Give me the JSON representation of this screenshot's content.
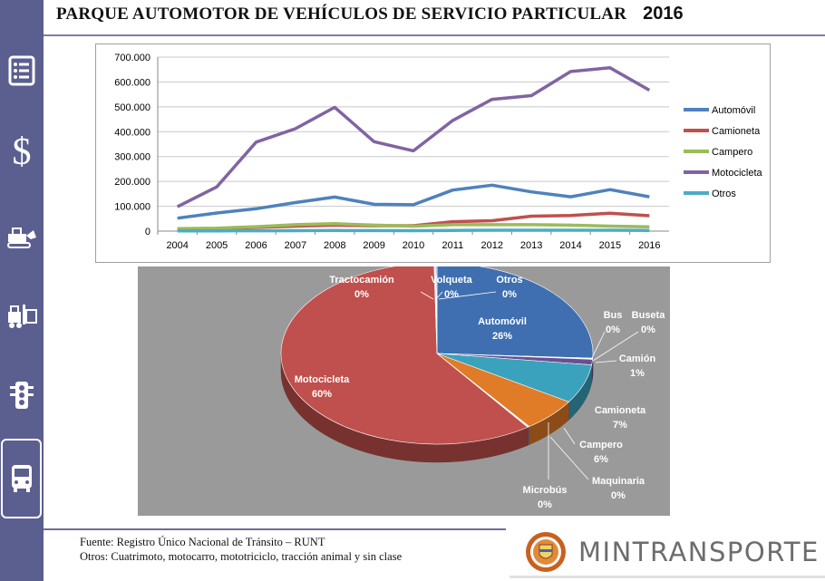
{
  "header": {
    "title": "PARQUE AUTOMOTOR DE VEHÍCULOS DE SERVICIO  PARTICULAR",
    "year": "2016"
  },
  "sidebar": {
    "icons": [
      "list-icon",
      "dollar-icon",
      "truck-icon",
      "forklift-icon",
      "traffic-light-icon",
      "bus-icon"
    ],
    "dollar_glyph": "$"
  },
  "chart_data": [
    {
      "type": "line",
      "x": [
        "2004",
        "2005",
        "2006",
        "2007",
        "2008",
        "2009",
        "2010",
        "2011",
        "2012",
        "2013",
        "2014",
        "2015",
        "2016"
      ],
      "y_ticks": [
        "0",
        "100.000",
        "200.000",
        "300.000",
        "400.000",
        "500.000",
        "600.000",
        "700.000"
      ],
      "ylim": [
        0,
        700000
      ],
      "grid": true,
      "legend_position": "right",
      "series": [
        {
          "name": "Automóvil",
          "color": "#4f81bd",
          "values": [
            52000,
            73000,
            90000,
            115000,
            137000,
            108000,
            106000,
            165000,
            185000,
            158000,
            138000,
            167000,
            138000
          ]
        },
        {
          "name": "Camioneta",
          "color": "#c0504d",
          "values": [
            6000,
            10000,
            15000,
            20000,
            24000,
            22000,
            22000,
            38000,
            42000,
            60000,
            63000,
            72000,
            62000
          ]
        },
        {
          "name": "Campero",
          "color": "#9bbb59",
          "values": [
            10000,
            12000,
            18000,
            26000,
            30000,
            24000,
            20000,
            26000,
            26000,
            26000,
            24000,
            20000,
            17000
          ]
        },
        {
          "name": "Motocicleta",
          "color": "#8064a2",
          "values": [
            98000,
            178000,
            358000,
            412000,
            498000,
            360000,
            323000,
            445000,
            530000,
            545000,
            642000,
            657000,
            567000
          ]
        },
        {
          "name": "Otros",
          "color": "#4bacc6",
          "values": [
            1000,
            1200,
            1500,
            2000,
            2500,
            2200,
            2000,
            3000,
            3500,
            3500,
            3500,
            3500,
            3000
          ]
        }
      ]
    },
    {
      "type": "pie",
      "slices": [
        {
          "label": "Automóvil",
          "value": 26,
          "pct": "26%",
          "color": "#3f6fb0"
        },
        {
          "label": "Bus",
          "value": 0.1,
          "pct": "0%",
          "color": "#7aa0d0"
        },
        {
          "label": "Buseta",
          "value": 0.1,
          "pct": "0%",
          "color": "#8fb04c"
        },
        {
          "label": "Camión",
          "value": 1,
          "pct": "1%",
          "color": "#6a4f90"
        },
        {
          "label": "Camioneta",
          "value": 7,
          "pct": "7%",
          "color": "#3aa2bd"
        },
        {
          "label": "Campero",
          "value": 6,
          "pct": "6%",
          "color": "#e07b28"
        },
        {
          "label": "Maquinaria",
          "value": 0.1,
          "pct": "0%",
          "color": "#8099c8"
        },
        {
          "label": "Microbús",
          "value": 0.1,
          "pct": "0%",
          "color": "#d06a62"
        },
        {
          "label": "Motocicleta",
          "value": 60,
          "pct": "60%",
          "color": "#c0504d"
        },
        {
          "label": "Tractocamión",
          "value": 0.1,
          "pct": "0%",
          "color": "#c8b8e0"
        },
        {
          "label": "Volqueta",
          "value": 0.1,
          "pct": "0%",
          "color": "#f0a050"
        },
        {
          "label": "Otros",
          "value": 0.1,
          "pct": "0%",
          "color": "#4a7ebb"
        }
      ]
    }
  ],
  "footer": {
    "source": "Fuente: Registro Único Nacional de Tránsito – RUNT",
    "note": "Otros: Cuatrimoto, motocarro, mototriciclo, tracción animal y sin clase"
  },
  "logo": {
    "text": "MINTRANSPORTE"
  }
}
